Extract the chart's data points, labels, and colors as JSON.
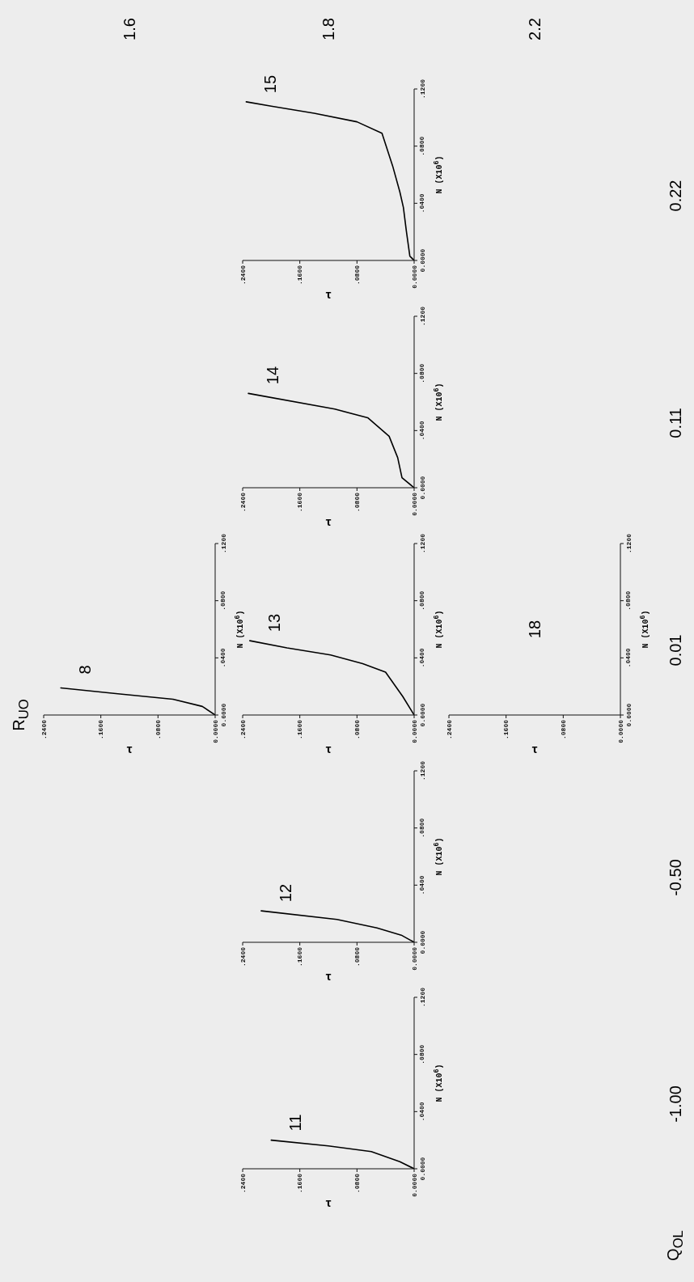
{
  "chart_data": [
    {
      "type": "other",
      "xlabel": "Q$_{OL}$",
      "ylabel": "R$_{UO}$",
      "categories": [
        "-1.00",
        "-0.50",
        "0.01",
        "0.11",
        "0.22"
      ],
      "y_categories": [
        "1.6",
        "1.8",
        "2.2"
      ]
    },
    {
      "type": "line",
      "title": "8",
      "xlabel": "τ",
      "ylabel": "N (X10$^{6}$)",
      "xlim": [
        0.24,
        0
      ],
      "ylim": [
        0,
        0.12
      ],
      "xticks": [
        {
          "value": 0.24,
          "label": ".2400"
        },
        {
          "value": 0.16,
          "label": ".1600"
        },
        {
          "value": 0.08,
          "label": ".0800"
        },
        {
          "value": 0,
          "label": "0.0000"
        }
      ],
      "yticks": [
        {
          "value": 0,
          "label": "0.0000"
        },
        {
          "value": 0.04,
          "label": ".0400"
        },
        {
          "value": 0.08,
          "label": ".0800"
        },
        {
          "value": 0.12,
          "label": ".1200"
        }
      ],
      "series": [
        {
          "color": "#000000",
          "x": [
            0,
            0.018,
            0.059,
            0.139,
            0.216
          ],
          "values": [
            0,
            0.006,
            0.011,
            0.015,
            0.019
          ]
        }
      ]
    },
    {
      "type": "line",
      "title": "11",
      "xlabel": "τ",
      "ylabel": "N (X10$^{6}$)",
      "xlim": [
        0.24,
        0
      ],
      "ylim": [
        0,
        0.12
      ],
      "xticks": [
        {
          "value": 0.24,
          "label": ".2400"
        },
        {
          "value": 0.16,
          "label": ".1600"
        },
        {
          "value": 0.08,
          "label": ".0800"
        },
        {
          "value": 0,
          "label": "0.0000"
        }
      ],
      "yticks": [
        {
          "value": 0,
          "label": "0.0000"
        },
        {
          "value": 0.04,
          "label": ".0400"
        },
        {
          "value": 0.08,
          "label": ".0800"
        },
        {
          "value": 0.12,
          "label": ".1200"
        }
      ],
      "series": [
        {
          "color": "#000000",
          "x": [
            0,
            0.02,
            0.06,
            0.12,
            0.2
          ],
          "values": [
            0,
            0.005,
            0.012,
            0.016,
            0.02
          ]
        }
      ]
    },
    {
      "type": "line",
      "title": "12",
      "xlabel": "τ",
      "ylabel": "N (X10$^{6}$)",
      "xlim": [
        0.24,
        0
      ],
      "ylim": [
        0,
        0.12
      ],
      "xticks": [
        {
          "value": 0.24,
          "label": ".2400"
        },
        {
          "value": 0.16,
          "label": ".1600"
        },
        {
          "value": 0.08,
          "label": ".0800"
        },
        {
          "value": 0,
          "label": "0.0000"
        }
      ],
      "yticks": [
        {
          "value": 0,
          "label": "0.0000"
        },
        {
          "value": 0.04,
          "label": ".0400"
        },
        {
          "value": 0.08,
          "label": ".0800"
        },
        {
          "value": 0.12,
          "label": ".1200"
        }
      ],
      "series": [
        {
          "color": "#000000",
          "x": [
            0,
            0.018,
            0.052,
            0.108,
            0.214
          ],
          "values": [
            0,
            0.005,
            0.01,
            0.016,
            0.022
          ]
        }
      ]
    },
    {
      "type": "line",
      "title": "13",
      "xlabel": "τ",
      "ylabel": "N (X10$^{6}$)",
      "xlim": [
        0.24,
        0
      ],
      "ylim": [
        0,
        0.12
      ],
      "xticks": [
        {
          "value": 0.24,
          "label": ".2400"
        },
        {
          "value": 0.16,
          "label": ".1600"
        },
        {
          "value": 0.08,
          "label": ".0800"
        },
        {
          "value": 0,
          "label": "0.0000"
        }
      ],
      "yticks": [
        {
          "value": 0,
          "label": "0.0000"
        },
        {
          "value": 0.04,
          "label": ".0400"
        },
        {
          "value": 0.08,
          "label": ".0800"
        },
        {
          "value": 0.12,
          "label": ".1200"
        }
      ],
      "series": [
        {
          "color": "#000000",
          "x": [
            0,
            0.016,
            0.04,
            0.072,
            0.117,
            0.178,
            0.23
          ],
          "values": [
            0,
            0.013,
            0.03,
            0.036,
            0.042,
            0.047,
            0.052
          ]
        }
      ]
    },
    {
      "type": "line",
      "title": "14",
      "xlabel": "τ",
      "ylabel": "N (X10$^{6}$)",
      "xlim": [
        0.24,
        0
      ],
      "ylim": [
        0,
        0.12
      ],
      "xticks": [
        {
          "value": 0.24,
          "label": ".2400"
        },
        {
          "value": 0.16,
          "label": ".1600"
        },
        {
          "value": 0.08,
          "label": ".0800"
        },
        {
          "value": 0,
          "label": "0.0000"
        }
      ],
      "yticks": [
        {
          "value": 0,
          "label": "0.0000"
        },
        {
          "value": 0.04,
          "label": ".0400"
        },
        {
          "value": 0.08,
          "label": ".0800"
        },
        {
          "value": 0.12,
          "label": ".1200"
        }
      ],
      "series": [
        {
          "color": "#000000",
          "x": [
            0,
            0.017,
            0.023,
            0.035,
            0.065,
            0.111,
            0.232
          ],
          "values": [
            0,
            0.007,
            0.021,
            0.036,
            0.049,
            0.055,
            0.066
          ]
        }
      ]
    },
    {
      "type": "line",
      "title": "15",
      "xlabel": "τ",
      "ylabel": "N (X10$^{6}$)",
      "xlim": [
        0.24,
        0
      ],
      "ylim": [
        0,
        0.12
      ],
      "xticks": [
        {
          "value": 0.24,
          "label": ".2400"
        },
        {
          "value": 0.16,
          "label": ".1600"
        },
        {
          "value": 0.08,
          "label": ".0800"
        },
        {
          "value": 0,
          "label": "0.0000"
        }
      ],
      "yticks": [
        {
          "value": 0,
          "label": "0.0000"
        },
        {
          "value": 0.04,
          "label": ".0400"
        },
        {
          "value": 0.08,
          "label": ".0800"
        },
        {
          "value": 0.12,
          "label": ".1200"
        }
      ],
      "series": [
        {
          "color": "#000000",
          "x": [
            0,
            0.006,
            0.011,
            0.015,
            0.02,
            0.03,
            0.045,
            0.08,
            0.14,
            0.2,
            0.235
          ],
          "values": [
            0,
            0.003,
            0.021,
            0.037,
            0.048,
            0.066,
            0.089,
            0.097,
            0.103,
            0.108,
            0.111
          ]
        }
      ]
    },
    {
      "type": "line",
      "title": "18",
      "xlabel": "τ",
      "ylabel": "N (X10$^{6}$)",
      "xlim": [
        0.24,
        0
      ],
      "ylim": [
        0,
        0.12
      ],
      "xticks": [
        {
          "value": 0.24,
          "label": ".2400"
        },
        {
          "value": 0.16,
          "label": ".1600"
        },
        {
          "value": 0.08,
          "label": ".0800"
        },
        {
          "value": 0,
          "label": "0.0000"
        }
      ],
      "yticks": [
        {
          "value": 0,
          "label": "0.0000"
        },
        {
          "value": 0.04,
          "label": ".0400"
        },
        {
          "value": 0.08,
          "label": ".0800"
        },
        {
          "value": 0.12,
          "label": ".1200"
        }
      ]
    }
  ]
}
